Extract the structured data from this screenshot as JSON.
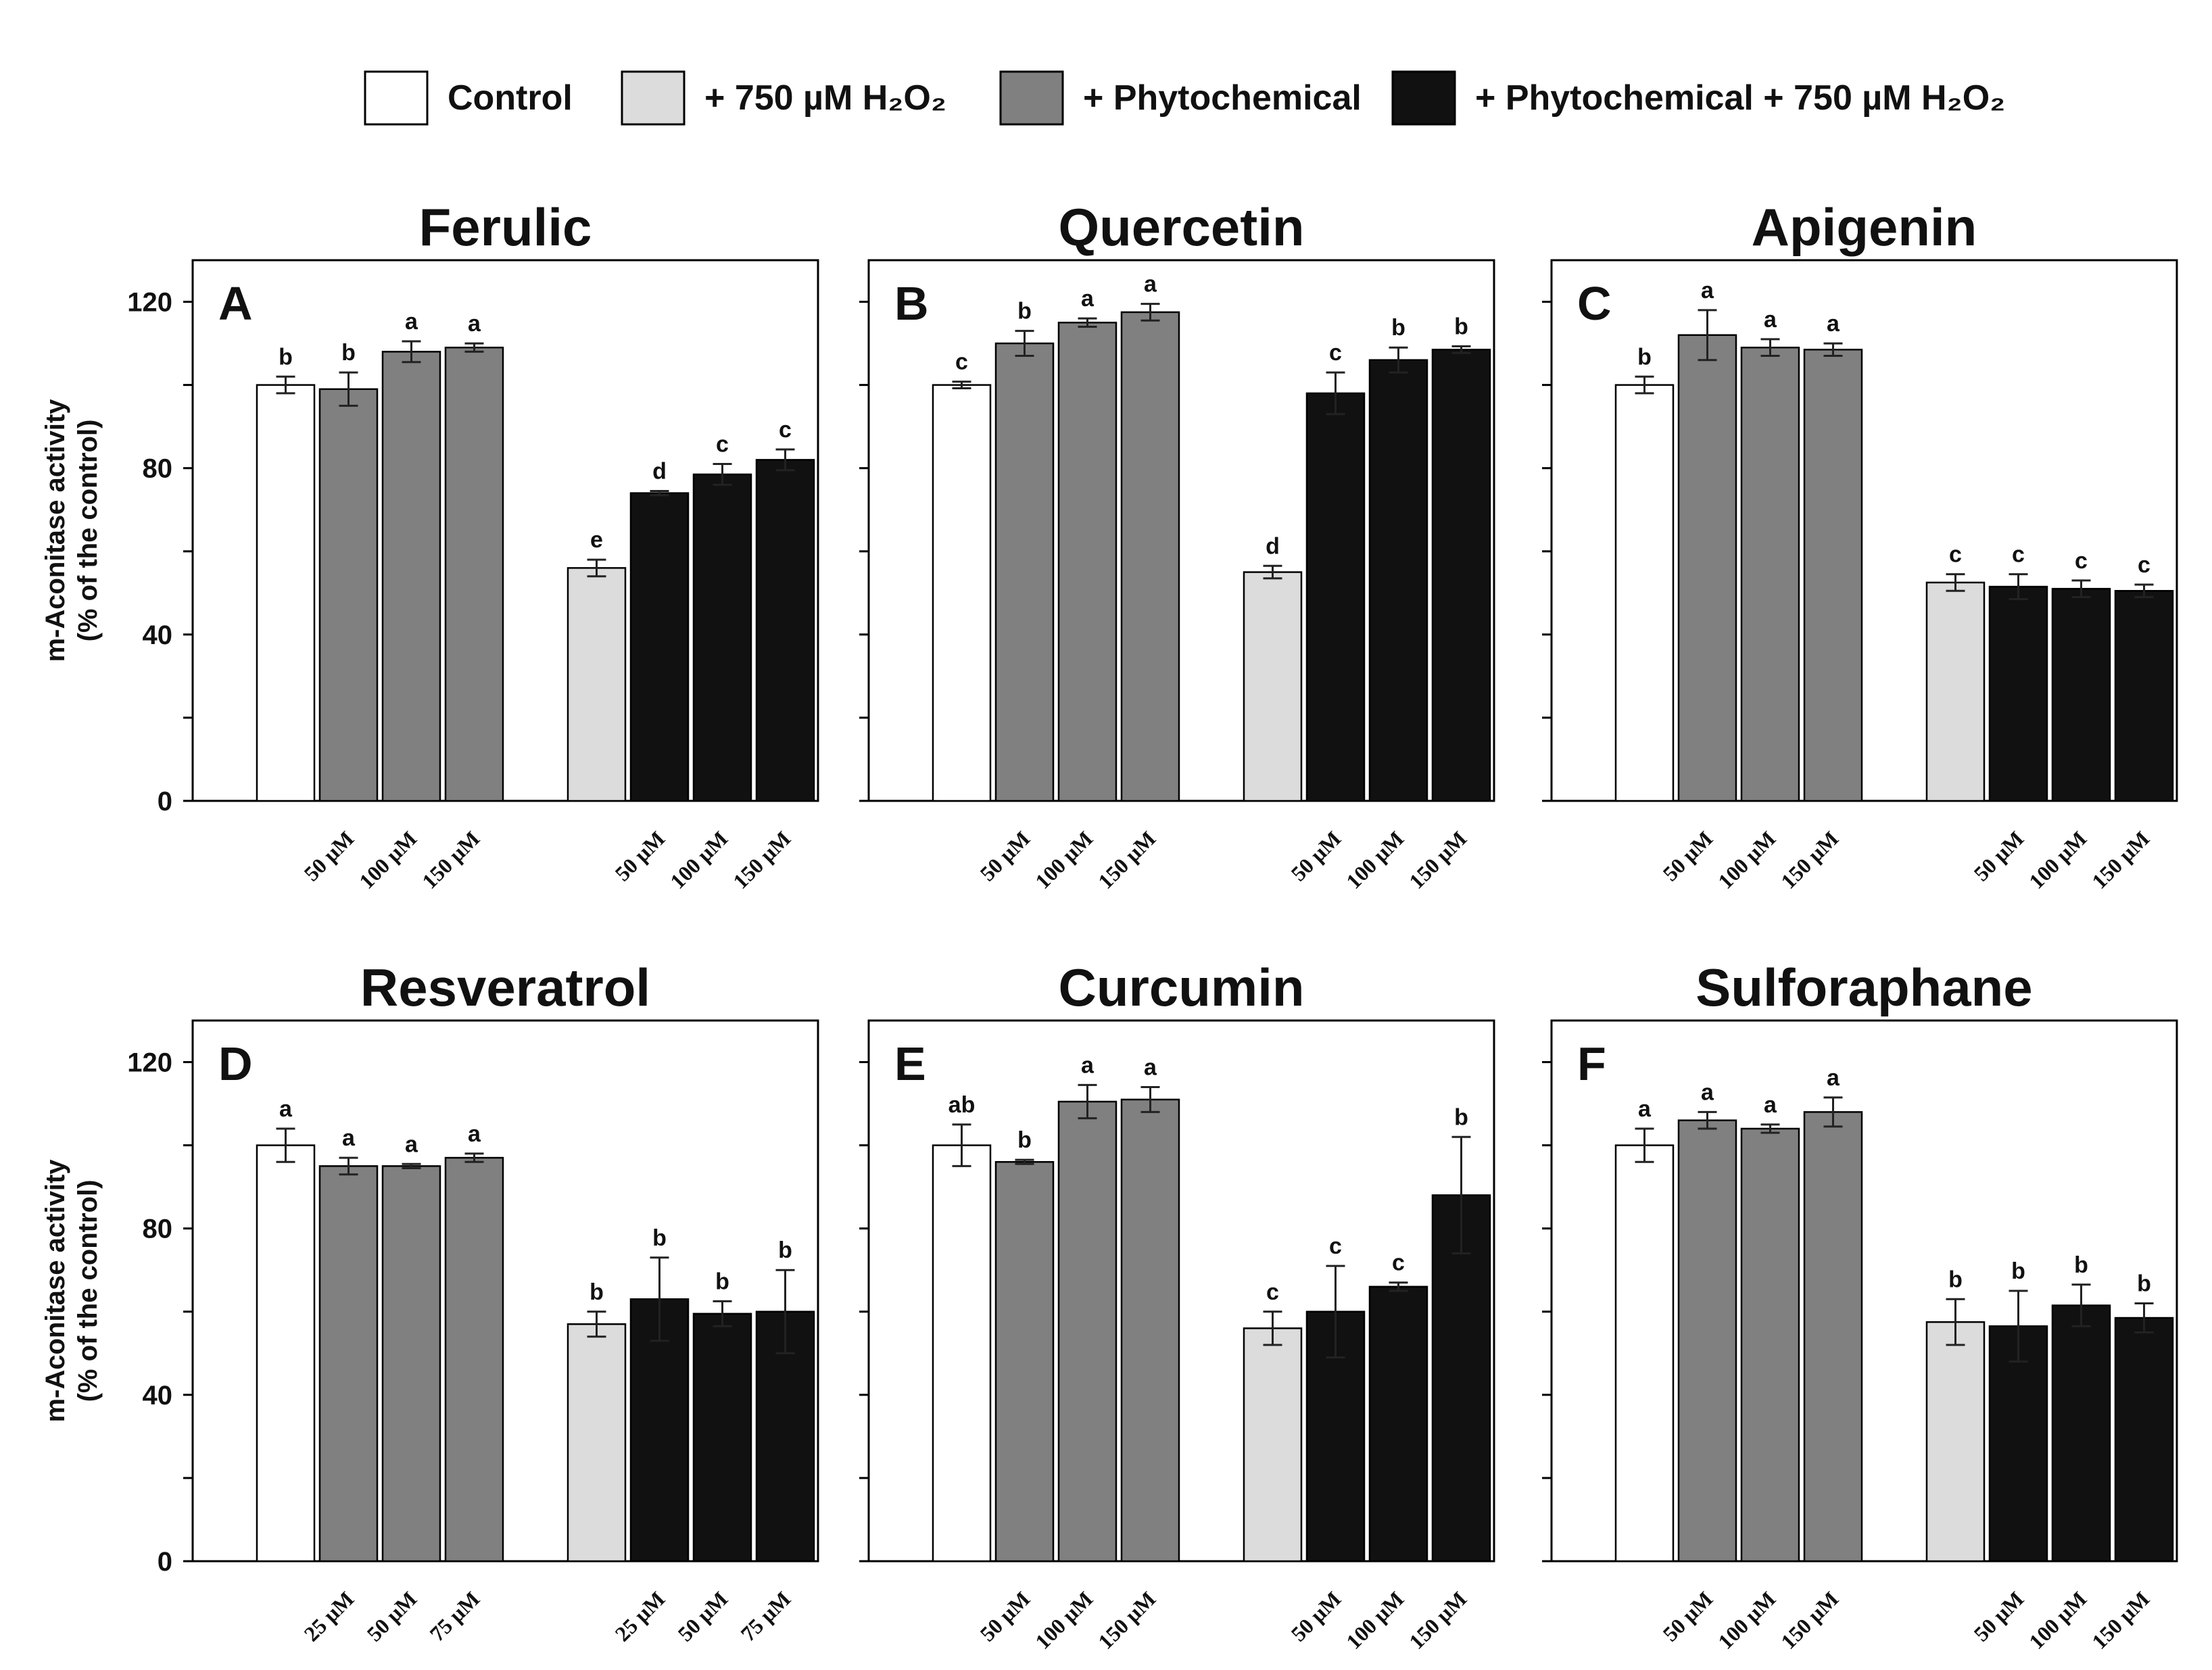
{
  "legend": {
    "items": [
      {
        "key": "control",
        "label": "Control",
        "color": "#ffffff"
      },
      {
        "key": "h2o2",
        "label": "+ 750  µM H₂O₂",
        "color": "#dcdcdc"
      },
      {
        "key": "phyto",
        "label": "+ Phytochemical",
        "color": "#808080"
      },
      {
        "key": "phyto_h2o2",
        "label": "+ Phytochemical + 750 µM H₂O₂",
        "color": "#111111"
      }
    ]
  },
  "chart_data": [
    {
      "type": "bar",
      "letter": "A",
      "title": "Ferulic",
      "ylabel": [
        "m-Aconitase activity",
        "(% of the control)"
      ],
      "ylim": [
        0,
        130
      ],
      "yticks": [
        0,
        40,
        80,
        120
      ],
      "dose_labels": [
        "50 µM",
        "100 µM",
        "150 µM"
      ],
      "bars": [
        {
          "group": "control",
          "value": 100,
          "error": 2,
          "letter": "b"
        },
        {
          "group": "phyto",
          "dose": "50 µM",
          "value": 99,
          "error": 4,
          "letter": "b"
        },
        {
          "group": "phyto",
          "dose": "100 µM",
          "value": 108,
          "error": 2.5,
          "letter": "a"
        },
        {
          "group": "phyto",
          "dose": "150 µM",
          "value": 109,
          "error": 1,
          "letter": "a"
        },
        {
          "group": "h2o2",
          "value": 56,
          "error": 2,
          "letter": "e"
        },
        {
          "group": "phyto_h2o2",
          "dose": "50 µM",
          "value": 74,
          "error": 0.5,
          "letter": "d"
        },
        {
          "group": "phyto_h2o2",
          "dose": "100 µM",
          "value": 78.5,
          "error": 2.5,
          "letter": "c"
        },
        {
          "group": "phyto_h2o2",
          "dose": "150 µM",
          "value": 82,
          "error": 2.5,
          "letter": "c"
        }
      ]
    },
    {
      "type": "bar",
      "letter": "B",
      "title": "Quercetin",
      "ylabel": [
        "m-Aconitase activity",
        "(% of the control)"
      ],
      "ylim": [
        0,
        130
      ],
      "yticks": [
        0,
        40,
        80,
        120
      ],
      "dose_labels": [
        "50 µM",
        "100 µM",
        "150 µM"
      ],
      "bars": [
        {
          "group": "control",
          "value": 100,
          "error": 0.8,
          "letter": "c"
        },
        {
          "group": "phyto",
          "dose": "50 µM",
          "value": 110,
          "error": 3,
          "letter": "b"
        },
        {
          "group": "phyto",
          "dose": "100 µM",
          "value": 115,
          "error": 1,
          "letter": "a"
        },
        {
          "group": "phyto",
          "dose": "150 µM",
          "value": 117.5,
          "error": 2,
          "letter": "a"
        },
        {
          "group": "h2o2",
          "value": 55,
          "error": 1.5,
          "letter": "d"
        },
        {
          "group": "phyto_h2o2",
          "dose": "50 µM",
          "value": 98,
          "error": 5,
          "letter": "c"
        },
        {
          "group": "phyto_h2o2",
          "dose": "100 µM",
          "value": 106,
          "error": 3,
          "letter": "b"
        },
        {
          "group": "phyto_h2o2",
          "dose": "150 µM",
          "value": 108.5,
          "error": 0.8,
          "letter": "b"
        }
      ]
    },
    {
      "type": "bar",
      "letter": "C",
      "title": "Apigenin",
      "ylabel": [
        "m-Aconitase activity",
        "(% of the control)"
      ],
      "ylim": [
        0,
        130
      ],
      "yticks": [
        0,
        40,
        80,
        120
      ],
      "dose_labels": [
        "50 µM",
        "100 µM",
        "150 µM"
      ],
      "bars": [
        {
          "group": "control",
          "value": 100,
          "error": 2,
          "letter": "b"
        },
        {
          "group": "phyto",
          "dose": "50 µM",
          "value": 112,
          "error": 6,
          "letter": "a"
        },
        {
          "group": "phyto",
          "dose": "100 µM",
          "value": 109,
          "error": 2,
          "letter": "a"
        },
        {
          "group": "phyto",
          "dose": "150 µM",
          "value": 108.5,
          "error": 1.5,
          "letter": "a"
        },
        {
          "group": "h2o2",
          "value": 52.5,
          "error": 2,
          "letter": "c"
        },
        {
          "group": "phyto_h2o2",
          "dose": "50 µM",
          "value": 51.5,
          "error": 3,
          "letter": "c"
        },
        {
          "group": "phyto_h2o2",
          "dose": "100 µM",
          "value": 51,
          "error": 2,
          "letter": "c"
        },
        {
          "group": "phyto_h2o2",
          "dose": "150 µM",
          "value": 50.5,
          "error": 1.5,
          "letter": "c"
        }
      ]
    },
    {
      "type": "bar",
      "letter": "D",
      "title": "Resveratrol",
      "ylabel": [
        "m-Aconitase activity",
        "(% of the control)"
      ],
      "ylim": [
        0,
        130
      ],
      "yticks": [
        0,
        40,
        80,
        120
      ],
      "dose_labels": [
        "25 µM",
        "50 µM",
        "75 µM"
      ],
      "bars": [
        {
          "group": "control",
          "value": 100,
          "error": 4,
          "letter": "a"
        },
        {
          "group": "phyto",
          "dose": "25 µM",
          "value": 95,
          "error": 2,
          "letter": "a"
        },
        {
          "group": "phyto",
          "dose": "50 µM",
          "value": 95,
          "error": 0.5,
          "letter": "a"
        },
        {
          "group": "phyto",
          "dose": "75 µM",
          "value": 97,
          "error": 1,
          "letter": "a"
        },
        {
          "group": "h2o2",
          "value": 57,
          "error": 3,
          "letter": "b"
        },
        {
          "group": "phyto_h2o2",
          "dose": "25 µM",
          "value": 63,
          "error": 10,
          "letter": "b"
        },
        {
          "group": "phyto_h2o2",
          "dose": "50 µM",
          "value": 59.5,
          "error": 3,
          "letter": "b"
        },
        {
          "group": "phyto_h2o2",
          "dose": "75 µM",
          "value": 60,
          "error": 10,
          "letter": "b"
        }
      ]
    },
    {
      "type": "bar",
      "letter": "E",
      "title": "Curcumin",
      "ylabel": [
        "m-Aconitase activity",
        "(% of the control)"
      ],
      "ylim": [
        0,
        130
      ],
      "yticks": [
        0,
        40,
        80,
        120
      ],
      "dose_labels": [
        "50 µM",
        "100 µM",
        "150 µM"
      ],
      "bars": [
        {
          "group": "control",
          "value": 100,
          "error": 5,
          "letter": "ab"
        },
        {
          "group": "phyto",
          "dose": "50 µM",
          "value": 96,
          "error": 0.5,
          "letter": "b"
        },
        {
          "group": "phyto",
          "dose": "100 µM",
          "value": 110.5,
          "error": 4,
          "letter": "a"
        },
        {
          "group": "phyto",
          "dose": "150 µM",
          "value": 111,
          "error": 3,
          "letter": "a"
        },
        {
          "group": "h2o2",
          "value": 56,
          "error": 4,
          "letter": "c"
        },
        {
          "group": "phyto_h2o2",
          "dose": "50 µM",
          "value": 60,
          "error": 11,
          "letter": "c"
        },
        {
          "group": "phyto_h2o2",
          "dose": "100 µM",
          "value": 66,
          "error": 1,
          "letter": "c"
        },
        {
          "group": "phyto_h2o2",
          "dose": "150 µM",
          "value": 88,
          "error": 14,
          "letter": "b"
        }
      ]
    },
    {
      "type": "bar",
      "letter": "F",
      "title": "Sulforaphane",
      "ylabel": [
        "m-Aconitase activity",
        "(% of the control)"
      ],
      "ylim": [
        0,
        130
      ],
      "yticks": [
        0,
        40,
        80,
        120
      ],
      "dose_labels": [
        "50 µM",
        "100 µM",
        "150 µM"
      ],
      "bars": [
        {
          "group": "control",
          "value": 100,
          "error": 4,
          "letter": "a"
        },
        {
          "group": "phyto",
          "dose": "50 µM",
          "value": 106,
          "error": 2,
          "letter": "a"
        },
        {
          "group": "phyto",
          "dose": "100 µM",
          "value": 104,
          "error": 1,
          "letter": "a"
        },
        {
          "group": "phyto",
          "dose": "150 µM",
          "value": 108,
          "error": 3.5,
          "letter": "a"
        },
        {
          "group": "h2o2",
          "value": 57.5,
          "error": 5.5,
          "letter": "b"
        },
        {
          "group": "phyto_h2o2",
          "dose": "50 µM",
          "value": 56.5,
          "error": 8.5,
          "letter": "b"
        },
        {
          "group": "phyto_h2o2",
          "dose": "100 µM",
          "value": 61.5,
          "error": 5,
          "letter": "b"
        },
        {
          "group": "phyto_h2o2",
          "dose": "150 µM",
          "value": 58.5,
          "error": 3.5,
          "letter": "b"
        }
      ]
    }
  ]
}
